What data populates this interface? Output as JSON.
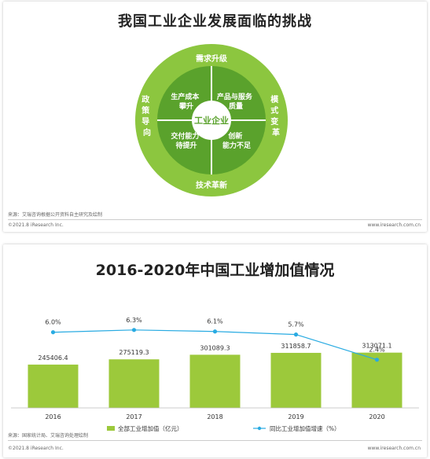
{
  "top": {
    "title": "我国工业企业发展面临的挑战",
    "outer_labels": {
      "top": "需求升级",
      "bottom": "技术革新",
      "left": [
        "政",
        "策",
        "导",
        "向"
      ],
      "right": [
        "模",
        "式",
        "变",
        "革"
      ]
    },
    "quadrants": [
      [
        "生产成本",
        "攀升"
      ],
      [
        "产品与服务",
        "质量"
      ],
      [
        "交付能力",
        "待提升"
      ],
      [
        "创新",
        "能力不足"
      ]
    ],
    "center": "工业企业",
    "source": "来源：艾瑞咨询根据公开资料自主研究及绘制",
    "copyright": "©2021.8 iResearch Inc.",
    "site": "www.iresearch.com.cn",
    "colors": {
      "outer_ring": "#8cc63f",
      "inner": "#5aa22c",
      "center": "#ffffff"
    }
  },
  "bottom": {
    "title": "2016-2020年中国工业增加值情况",
    "source": "来源：国家统计局、艾瑞咨询处理绘制",
    "copyright": "©2021.8 iResearch Inc.",
    "site": "www.iresearch.com.cn"
  },
  "chart_data": {
    "type": "bar",
    "title": "2016-2020年中国工业增加值情况",
    "categories": [
      "2016",
      "2017",
      "2018",
      "2019",
      "2020"
    ],
    "series": [
      {
        "name": "全部工业增加值（亿元）",
        "type": "bar",
        "values": [
          245406.4,
          275119.3,
          301089.3,
          311858.7,
          313071.1
        ],
        "labels": [
          "245406.4",
          "275119.3",
          "301089.3",
          "311858.7",
          "313071.1"
        ],
        "color": "#9cc93b"
      },
      {
        "name": "同比工业增加值增速（%）",
        "type": "line",
        "values": [
          6.0,
          6.3,
          6.1,
          5.7,
          2.4
        ],
        "labels": [
          "6.0%",
          "6.3%",
          "6.1%",
          "5.7%",
          "2.4%"
        ],
        "color": "#29abe2"
      }
    ],
    "legend_position": "bottom",
    "grid": false
  }
}
